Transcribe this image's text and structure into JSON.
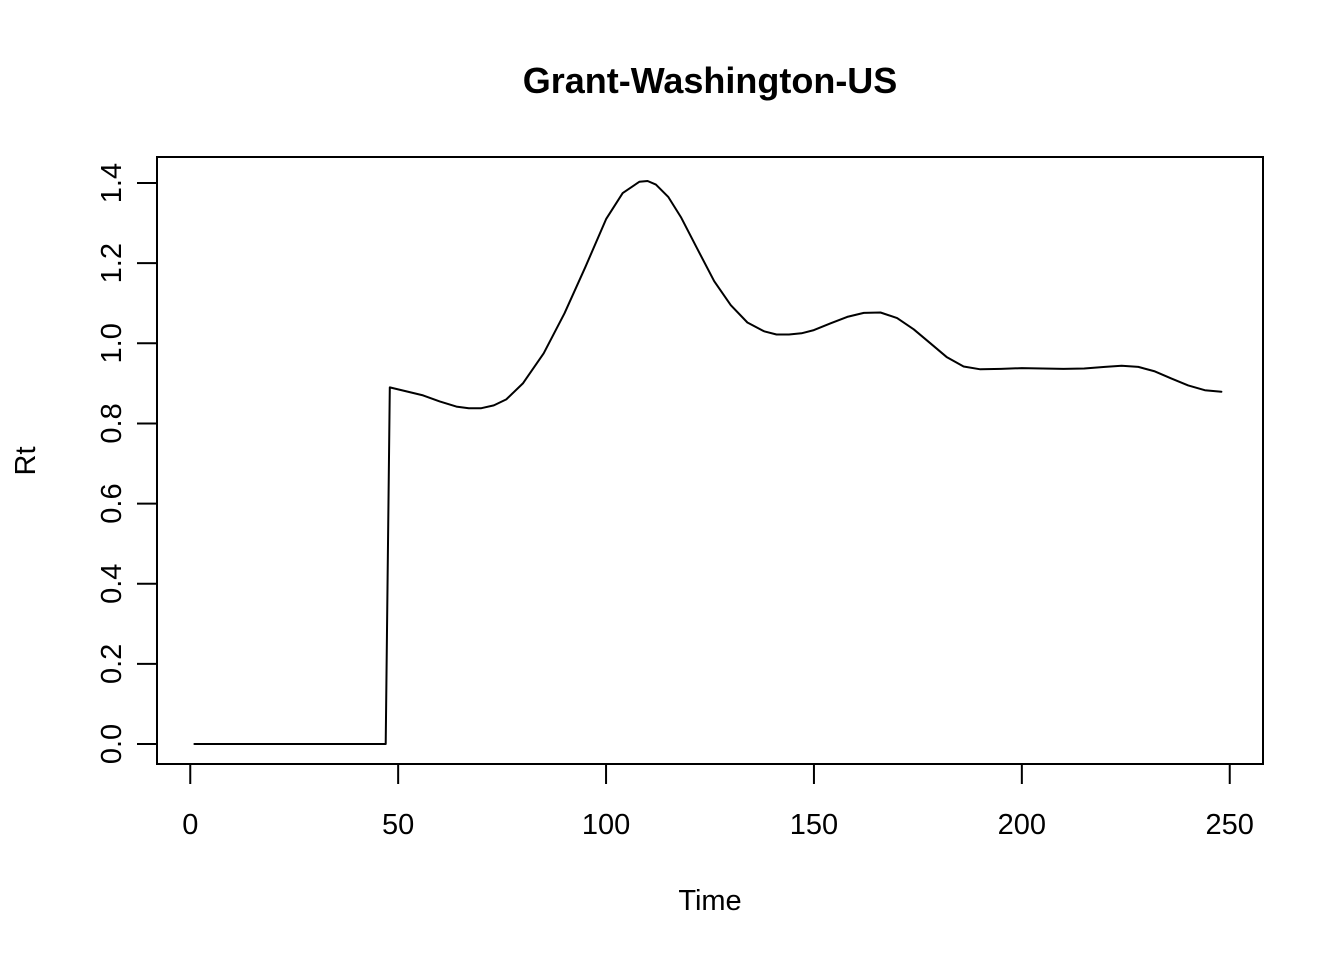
{
  "chart_data": {
    "type": "line",
    "title": "Grant-Washington-US",
    "xlabel": "Time",
    "ylabel": "Rt",
    "xlim": [
      -8,
      258
    ],
    "ylim": [
      -0.05,
      1.465
    ],
    "x_ticks": [
      0,
      50,
      100,
      150,
      200,
      250
    ],
    "x_tick_labels": [
      "0",
      "50",
      "100",
      "150",
      "200",
      "250"
    ],
    "y_ticks": [
      0.0,
      0.2,
      0.4,
      0.6,
      0.8,
      1.0,
      1.2,
      1.4
    ],
    "y_tick_labels": [
      "0.0",
      "0.2",
      "0.4",
      "0.6",
      "0.8",
      "1.0",
      "1.2",
      "1.4"
    ],
    "grid": false,
    "series": [
      {
        "color": "#000000",
        "x": [
          1,
          47,
          48,
          52,
          56,
          60,
          64,
          67,
          70,
          73,
          76,
          80,
          85,
          90,
          95,
          100,
          104,
          108,
          110,
          112,
          115,
          118,
          122,
          126,
          130,
          134,
          138,
          141,
          144,
          147,
          150,
          154,
          158,
          162,
          166,
          170,
          174,
          178,
          182,
          186,
          190,
          195,
          200,
          205,
          210,
          215,
          220,
          224,
          228,
          232,
          236,
          240,
          244,
          248
        ],
        "y": [
          0.0,
          0.0,
          0.89,
          0.88,
          0.87,
          0.855,
          0.842,
          0.838,
          0.838,
          0.845,
          0.86,
          0.9,
          0.975,
          1.075,
          1.19,
          1.31,
          1.375,
          1.403,
          1.405,
          1.396,
          1.365,
          1.315,
          1.235,
          1.155,
          1.095,
          1.052,
          1.03,
          1.022,
          1.022,
          1.025,
          1.033,
          1.05,
          1.066,
          1.076,
          1.077,
          1.063,
          1.035,
          1.0,
          0.965,
          0.942,
          0.935,
          0.936,
          0.938,
          0.937,
          0.936,
          0.937,
          0.941,
          0.944,
          0.941,
          0.93,
          0.912,
          0.895,
          0.883,
          0.879
        ]
      }
    ]
  }
}
